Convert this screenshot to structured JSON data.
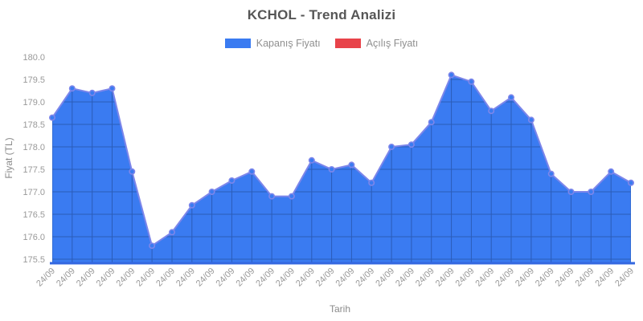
{
  "title": "KCHOL - Trend Analizi",
  "legend": {
    "items": [
      {
        "label": "Kapanış Fiyatı",
        "color": "#3a7bf1"
      },
      {
        "label": "Açılış Fiyatı",
        "color": "#e8434a"
      }
    ]
  },
  "axes": {
    "y_title": "Fiyat (TL)",
    "x_title": "Tarih"
  },
  "chart_data": {
    "type": "area",
    "title": "KCHOL - Trend Analizi",
    "xlabel": "Tarih",
    "ylabel": "Fiyat (TL)",
    "ylim": [
      175.5,
      180.0
    ],
    "ytick_step": 0.5,
    "ytick_labels": [
      "175.5",
      "176.0",
      "176.5",
      "177.0",
      "177.5",
      "178.0",
      "178.5",
      "179.0",
      "179.5",
      "180.0"
    ],
    "x_tick_rotation_deg": 45,
    "grid": "gridlines visible only inside filled area",
    "legend_position": "top",
    "categories": [
      "24/09",
      "24/09",
      "24/09",
      "24/09",
      "24/09",
      "24/09",
      "24/09",
      "24/09",
      "24/09",
      "24/09",
      "24/09",
      "24/09",
      "24/09",
      "24/09",
      "24/09",
      "24/09",
      "24/09",
      "24/09",
      "24/09",
      "24/09",
      "24/09",
      "24/09",
      "24/09",
      "24/09",
      "24/09",
      "24/09",
      "24/09",
      "24/09",
      "24/09",
      "24/09"
    ],
    "series": [
      {
        "name": "Kapanış Fiyatı",
        "color": "#3a7bf1",
        "style": "filled area with line and circle markers",
        "values": [
          178.65,
          179.3,
          179.2,
          179.3,
          177.45,
          175.8,
          176.1,
          176.7,
          177.0,
          177.25,
          177.45,
          176.9,
          176.9,
          177.7,
          177.5,
          177.6,
          177.2,
          178.0,
          178.05,
          178.55,
          179.6,
          179.45,
          178.8,
          179.1,
          178.6,
          177.4,
          177.0,
          177.0,
          177.45,
          177.2
        ]
      },
      {
        "name": "Açılış Fiyatı",
        "color": "#e8434a",
        "style": "legend entry only, no visible line in plot",
        "values": []
      }
    ]
  },
  "style": {
    "background": "#ffffff",
    "area_fill": "#3a7bf1",
    "line_color": "#7d86ea",
    "marker_fill": "#3a7bf1",
    "marker_border": "#7d86ea",
    "grid_color": "#2b5cb8",
    "baseline_color": "#3468e0",
    "title_color": "#565656",
    "legend_text_color": "#8f8f8f",
    "tick_color": "#999999",
    "axis_title_color": "#8a8a8a"
  }
}
